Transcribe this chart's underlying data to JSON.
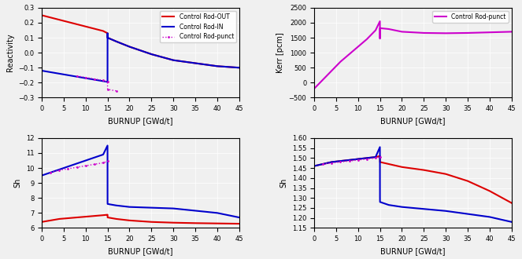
{
  "burnup": [
    0,
    2,
    4,
    6,
    8,
    10,
    12,
    14,
    14.99,
    15,
    15.01,
    17,
    20,
    25,
    30,
    35,
    40,
    45
  ],
  "react_out": [
    0.25,
    0.235,
    0.22,
    0.205,
    0.19,
    0.175,
    0.16,
    0.145,
    0.13,
    0.13,
    0.1,
    0.075,
    0.04,
    -0.01,
    -0.05,
    -0.07,
    -0.09,
    -0.1
  ],
  "react_in": [
    -0.12,
    -0.13,
    -0.14,
    -0.15,
    -0.16,
    -0.17,
    -0.18,
    -0.19,
    -0.195,
    0.13,
    0.1,
    0.075,
    0.04,
    -0.01,
    -0.05,
    -0.07,
    -0.09,
    -0.1
  ],
  "react_punct": [
    null,
    null,
    null,
    null,
    -0.155,
    -0.165,
    -0.175,
    -0.185,
    -0.195,
    null,
    -0.245,
    -0.255,
    null,
    null,
    null,
    null,
    null,
    null
  ],
  "kerr_punct": [
    -200,
    100,
    400,
    700,
    950,
    1200,
    1450,
    1750,
    2050,
    1470,
    1820,
    1790,
    1700,
    1660,
    1650,
    1660,
    1680,
    1700
  ],
  "sh_out": [
    6.4,
    6.5,
    6.6,
    6.65,
    6.7,
    6.75,
    6.8,
    6.85,
    6.88,
    6.88,
    6.7,
    6.6,
    6.5,
    6.4,
    6.35,
    6.32,
    6.3,
    6.28
  ],
  "sh_in": [
    9.5,
    9.7,
    9.9,
    10.1,
    10.3,
    10.5,
    10.7,
    10.9,
    11.5,
    7.75,
    7.6,
    7.5,
    7.4,
    7.35,
    7.3,
    7.15,
    7.0,
    6.7
  ],
  "sh_punct": [
    null,
    9.7,
    9.85,
    9.95,
    10.05,
    10.15,
    10.25,
    10.35,
    10.45,
    null,
    null,
    null,
    null,
    null,
    null,
    null,
    null,
    null
  ],
  "sh4_out_bu": [
    0,
    2,
    4,
    6,
    8,
    10,
    12,
    14,
    14.99,
    15,
    15.01,
    17,
    20,
    25,
    30,
    35,
    40,
    45
  ],
  "sh4_out": [
    1.46,
    1.47,
    1.48,
    1.485,
    1.49,
    1.495,
    1.5,
    1.505,
    1.51,
    1.51,
    1.48,
    1.47,
    1.455,
    1.44,
    1.42,
    1.385,
    1.335,
    1.275
  ],
  "sh4_in": [
    1.46,
    1.47,
    1.48,
    1.485,
    1.49,
    1.495,
    1.5,
    1.505,
    1.555,
    1.3,
    1.28,
    1.265,
    1.255,
    1.245,
    1.235,
    1.22,
    1.205,
    1.18
  ],
  "sh4_punct": [
    null,
    1.47,
    1.475,
    1.48,
    1.485,
    1.49,
    1.495,
    1.5,
    1.505,
    null,
    null,
    null,
    null,
    null,
    null,
    null,
    null,
    null
  ],
  "color_red": "#dd0000",
  "color_blue": "#0000cc",
  "color_magenta": "#cc00cc",
  "xlim": [
    0,
    45
  ],
  "xticks": [
    0,
    5,
    10,
    15,
    20,
    25,
    30,
    35,
    40,
    45
  ],
  "react_ylim": [
    -0.3,
    0.3
  ],
  "react_yticks": [
    -0.3,
    -0.2,
    -0.1,
    0.0,
    0.1,
    0.2,
    0.3
  ],
  "kerr_ylim": [
    -500,
    2500
  ],
  "kerr_yticks": [
    -500,
    0,
    500,
    1000,
    1500,
    2000,
    2500
  ],
  "sh_ylim": [
    6,
    12
  ],
  "sh_yticks": [
    6,
    7,
    8,
    9,
    10,
    11,
    12
  ],
  "sh4_ylim": [
    1.15,
    1.6
  ],
  "sh4_yticks": [
    1.15,
    1.2,
    1.25,
    1.3,
    1.35,
    1.4,
    1.45,
    1.5,
    1.55,
    1.6
  ],
  "xlabel": "BURNUP [GWd/t]",
  "ylabel_react": "Reactivity",
  "ylabel_kerr": "Kerr [pcm]",
  "ylabel_sh": "Sh",
  "ylabel_sh4": "Sh",
  "legend1_labels": [
    "Control Rod-OUT",
    "Control Rod-IN",
    "Control Rod-punct"
  ],
  "legend2_labels": [
    "Control Rod-punct"
  ],
  "bg_color": "#f0f0f0"
}
